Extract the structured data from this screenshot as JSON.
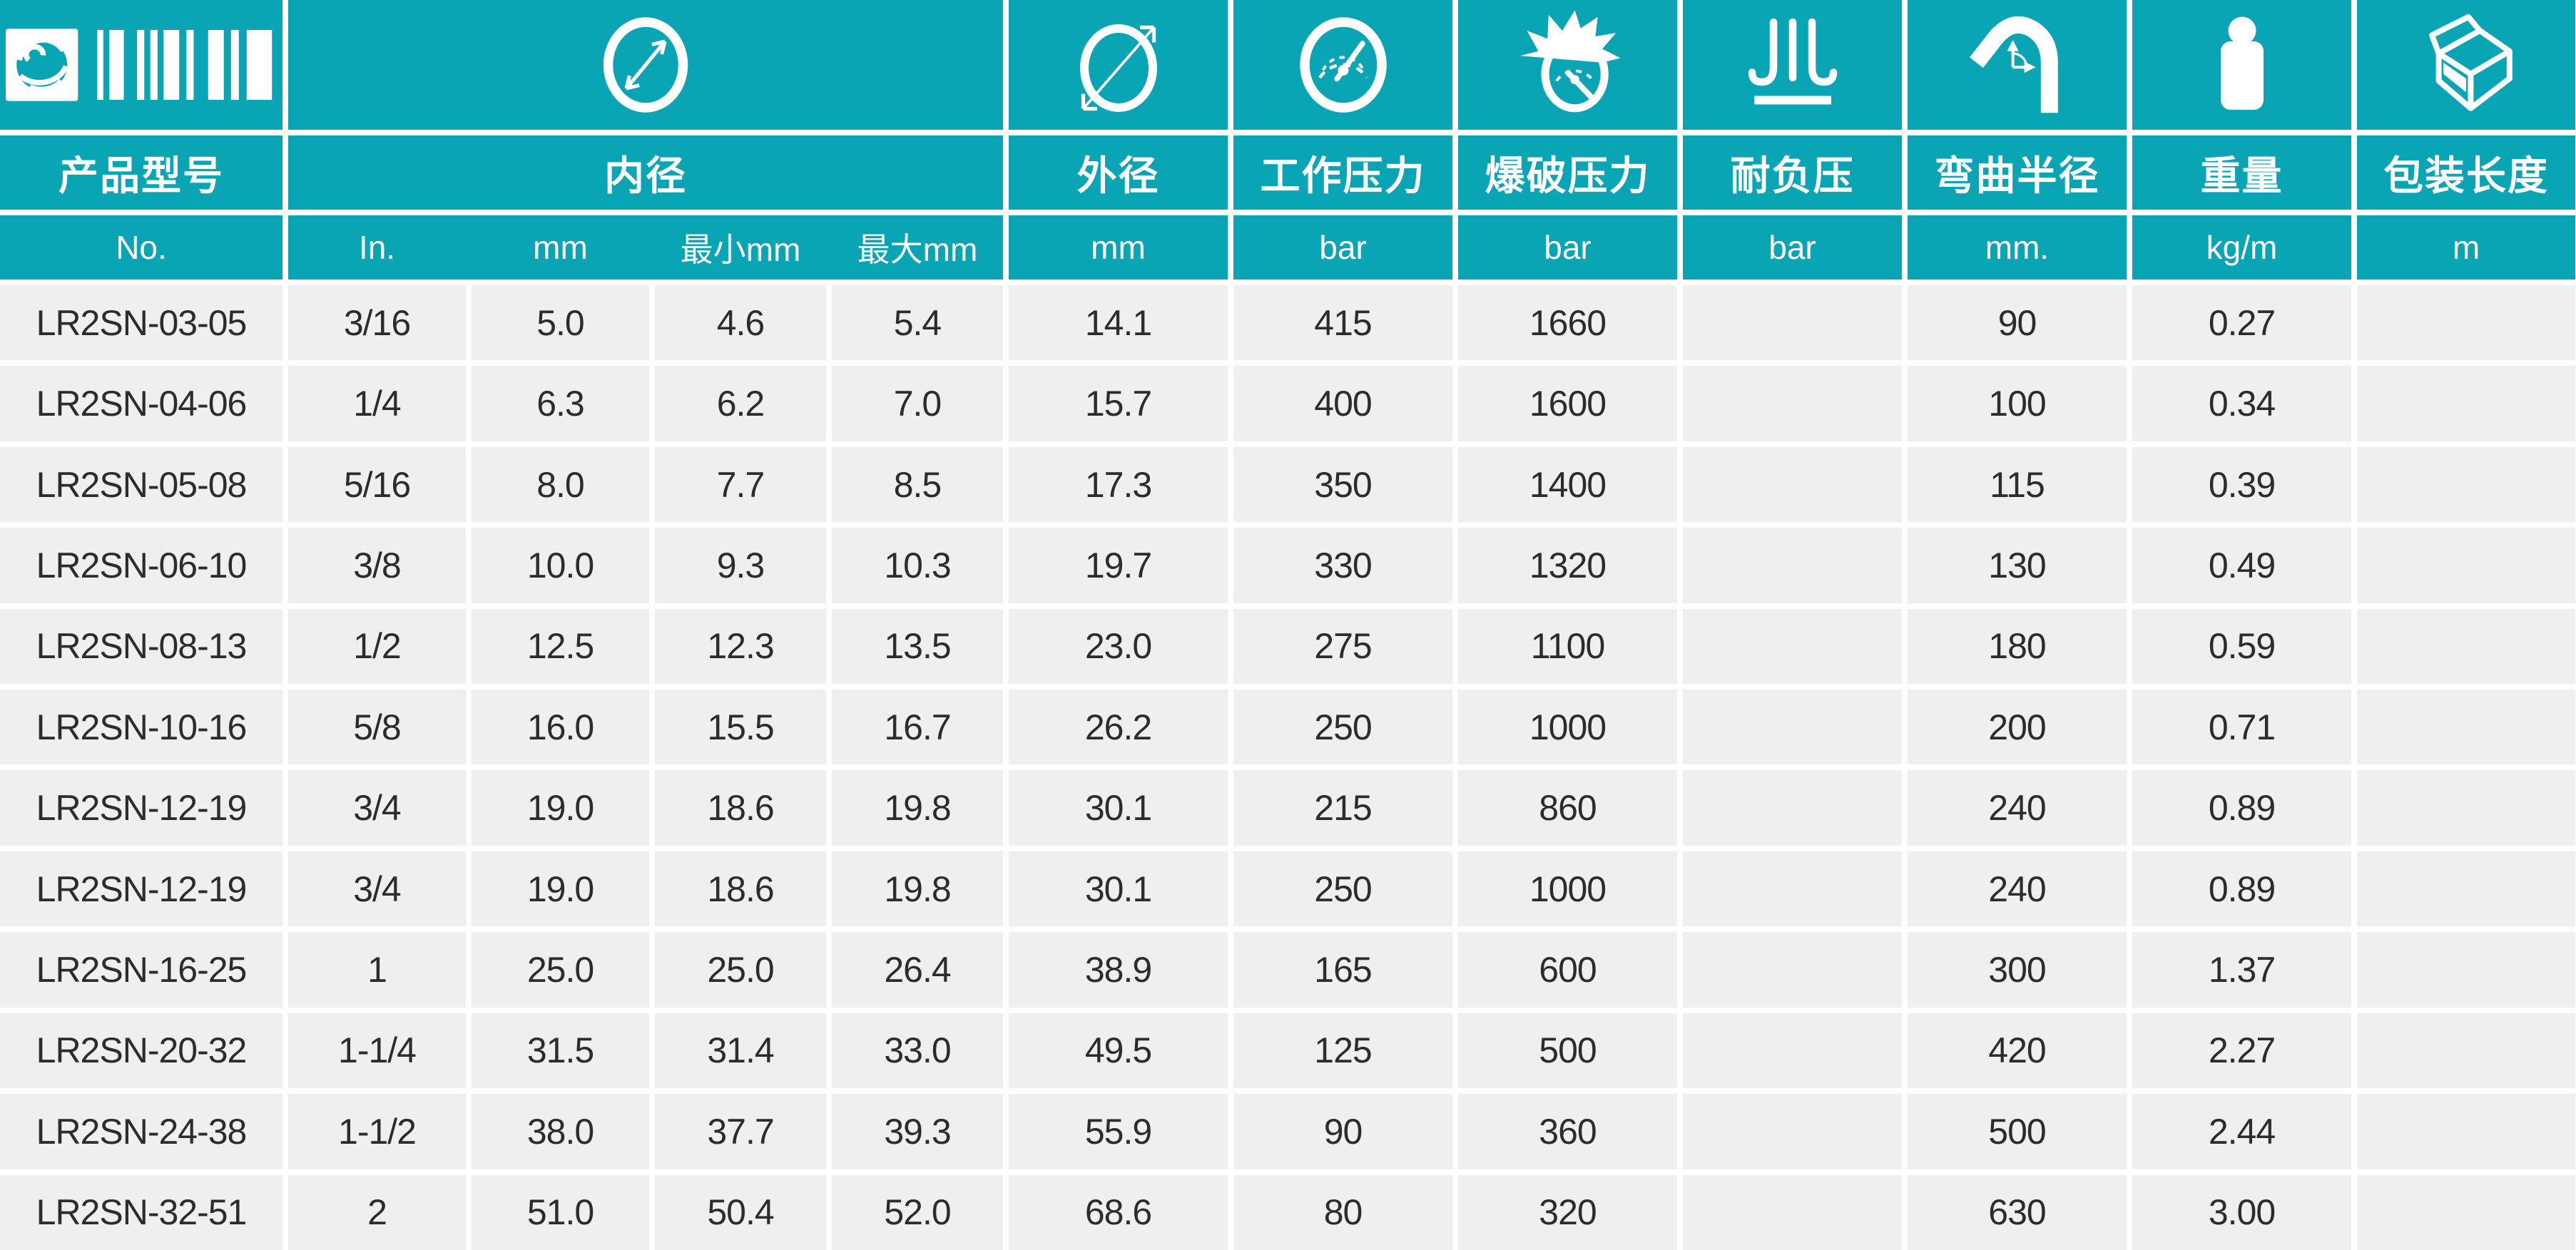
{
  "theme": {
    "teal": "#0aa5b5",
    "cell_background": "#efefef",
    "gutter": "#ffffff",
    "data_text": "#2d2b2c",
    "header_text": "#ffffff"
  },
  "icons": {
    "logo": "brand-swirl-barcode-logo",
    "inner": "inner-diameter-icon",
    "outer": "outer-diameter-icon",
    "working": "pressure-gauge-icon",
    "burst": "burst-gauge-icon",
    "vacuum": "vacuum-resistance-icon",
    "bend": "bend-radius-hose-icon",
    "weight": "weight-kettlebell-icon",
    "package": "packaging-box-icon"
  },
  "header": {
    "product": {
      "label": "产品型号",
      "unit": "No."
    },
    "inner": {
      "label": "内径",
      "units": [
        "In.",
        "mm",
        "最小mm",
        "最大mm"
      ]
    },
    "outer": {
      "label": "外径",
      "unit": "mm"
    },
    "working": {
      "label": "工作压力",
      "unit": "bar"
    },
    "burst": {
      "label": "爆破压力",
      "unit": "bar"
    },
    "vacuum": {
      "label": "耐负压",
      "unit": "bar"
    },
    "bend": {
      "label": "弯曲半径",
      "unit": "mm."
    },
    "weight": {
      "label": "重量",
      "unit": "kg/m"
    },
    "package": {
      "label": "包装长度",
      "unit": "m"
    }
  },
  "table": {
    "column_keys": [
      "product-no",
      "id-inch",
      "id-mm",
      "id-min-mm",
      "id-max-mm",
      "od-mm",
      "working-pressure",
      "burst-pressure",
      "vacuum",
      "bend-radius",
      "weight",
      "package-length"
    ],
    "rows": [
      [
        "LR2SN-03-05",
        "3/16",
        "5.0",
        "4.6",
        "5.4",
        "14.1",
        "415",
        "1660",
        "",
        "90",
        "0.27",
        ""
      ],
      [
        "LR2SN-04-06",
        "1/4",
        "6.3",
        "6.2",
        "7.0",
        "15.7",
        "400",
        "1600",
        "",
        "100",
        "0.34",
        ""
      ],
      [
        "LR2SN-05-08",
        "5/16",
        "8.0",
        "7.7",
        "8.5",
        "17.3",
        "350",
        "1400",
        "",
        "115",
        "0.39",
        ""
      ],
      [
        "LR2SN-06-10",
        "3/8",
        "10.0",
        "9.3",
        "10.3",
        "19.7",
        "330",
        "1320",
        "",
        "130",
        "0.49",
        ""
      ],
      [
        "LR2SN-08-13",
        "1/2",
        "12.5",
        "12.3",
        "13.5",
        "23.0",
        "275",
        "1100",
        "",
        "180",
        "0.59",
        ""
      ],
      [
        "LR2SN-10-16",
        "5/8",
        "16.0",
        "15.5",
        "16.7",
        "26.2",
        "250",
        "1000",
        "",
        "200",
        "0.71",
        ""
      ],
      [
        "LR2SN-12-19",
        "3/4",
        "19.0",
        "18.6",
        "19.8",
        "30.1",
        "215",
        "860",
        "",
        "240",
        "0.89",
        ""
      ],
      [
        "LR2SN-12-19",
        "3/4",
        "19.0",
        "18.6",
        "19.8",
        "30.1",
        "250",
        "1000",
        "",
        "240",
        "0.89",
        ""
      ],
      [
        "LR2SN-16-25",
        "1",
        "25.0",
        "25.0",
        "26.4",
        "38.9",
        "165",
        "600",
        "",
        "300",
        "1.37",
        ""
      ],
      [
        "LR2SN-20-32",
        "1-1/4",
        "31.5",
        "31.4",
        "33.0",
        "49.5",
        "125",
        "500",
        "",
        "420",
        "2.27",
        ""
      ],
      [
        "LR2SN-24-38",
        "1-1/2",
        "38.0",
        "37.7",
        "39.3",
        "55.9",
        "90",
        "360",
        "",
        "500",
        "2.44",
        ""
      ],
      [
        "LR2SN-32-51",
        "2",
        "51.0",
        "50.4",
        "52.0",
        "68.6",
        "80",
        "320",
        "",
        "630",
        "3.00",
        ""
      ]
    ]
  }
}
